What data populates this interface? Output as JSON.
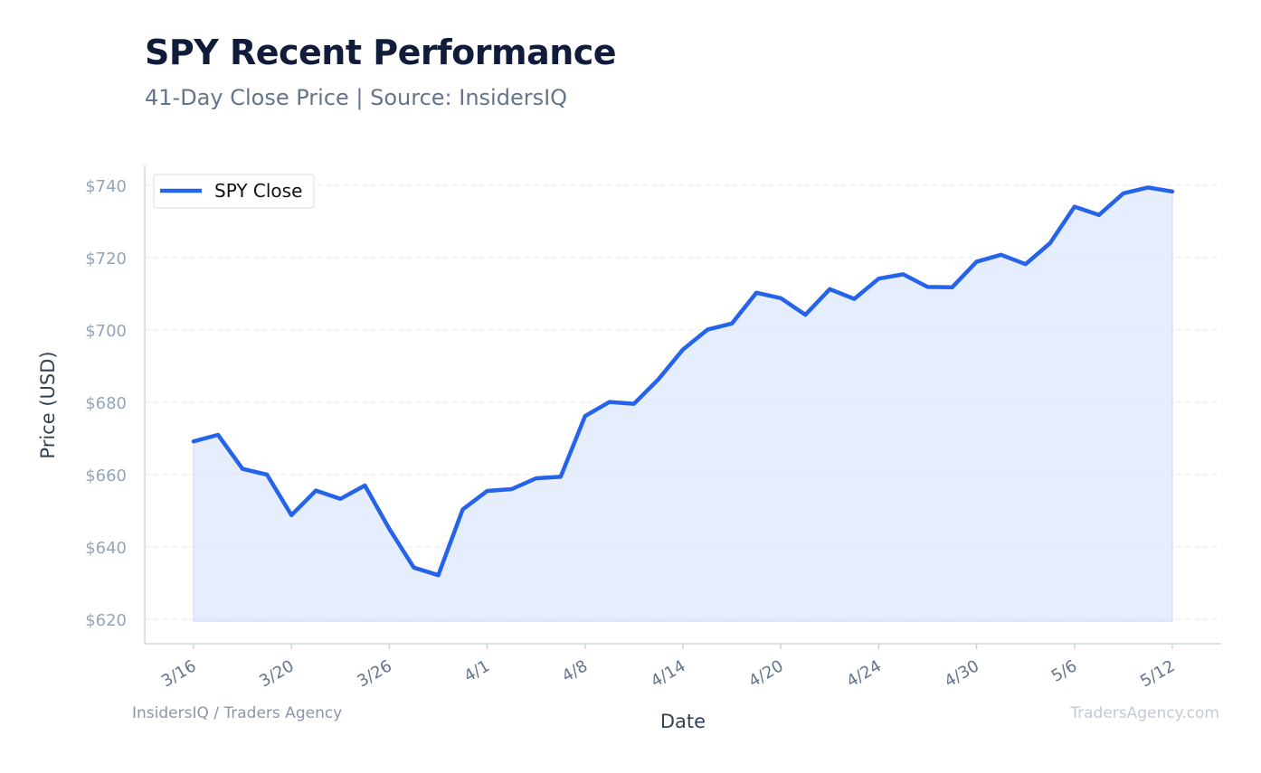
{
  "header": {
    "title": "SPY Recent Performance",
    "subtitle": "41-Day Close Price | Source: InsidersIQ"
  },
  "footer": {
    "left": "InsidersIQ / Traders Agency",
    "right": "TradersAgency.com"
  },
  "colors": {
    "line": "#2563eb",
    "fill": "#dbe6fb",
    "grid": "#e5e9f0",
    "axis": "#cbd5e1"
  },
  "chart_data": {
    "type": "area",
    "title": "SPY Recent Performance",
    "subtitle": "41-Day Close Price | Source: InsidersIQ",
    "xlabel": "Date",
    "ylabel": "Price (USD)",
    "ylim": [
      615,
      745
    ],
    "yticks": [
      620,
      640,
      660,
      680,
      700,
      720,
      740
    ],
    "ytick_labels": [
      "$620",
      "$640",
      "$660",
      "$680",
      "$700",
      "$720",
      "$740"
    ],
    "xtick_labels": [
      "3/16",
      "3/20",
      "3/26",
      "4/1",
      "4/8",
      "4/14",
      "4/20",
      "4/24",
      "4/30",
      "5/6",
      "5/12"
    ],
    "xtick_indices": [
      0,
      4,
      8,
      12,
      16,
      20,
      24,
      28,
      32,
      36,
      40
    ],
    "grid": true,
    "legend_position": "top-left",
    "series": [
      {
        "name": "SPY Close",
        "values": [
          669.2,
          671.0,
          661.6,
          660.0,
          648.8,
          655.6,
          653.3,
          657.0,
          645.0,
          634.3,
          632.2,
          650.4,
          655.5,
          656.0,
          659.0,
          659.4,
          676.2,
          680.1,
          679.6,
          686.4,
          694.6,
          700.1,
          701.8,
          710.3,
          708.8,
          704.2,
          711.3,
          708.6,
          714.2,
          715.4,
          711.9,
          711.8,
          718.9,
          720.8,
          718.2,
          724.0,
          734.1,
          731.8,
          737.8,
          739.4,
          738.3
        ]
      }
    ]
  }
}
